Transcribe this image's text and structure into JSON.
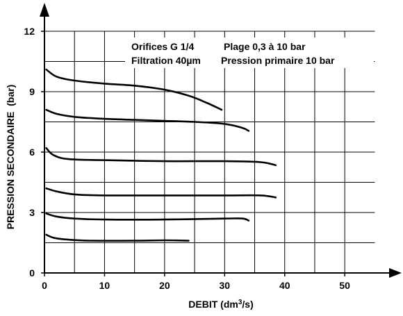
{
  "chart_data": {
    "type": "line",
    "title": "",
    "xlabel": "DEBIT (dm³/s)",
    "xlabel_base": "DEBIT (dm",
    "xlabel_sup": "3",
    "xlabel_tail": "/s)",
    "ylabel": "PRESSION SECONDAIRE  (bar)",
    "xlim": [
      0,
      55
    ],
    "ylim": [
      0,
      12
    ],
    "xticks": [
      0,
      10,
      20,
      30,
      40,
      50
    ],
    "yticks": [
      0,
      3,
      6,
      9,
      12
    ],
    "grid_x": [
      0,
      5,
      10,
      15,
      20,
      25,
      30,
      35,
      40,
      45,
      50
    ],
    "grid_y": [
      0,
      1.5,
      3,
      4.5,
      6,
      7.5,
      9,
      10.5,
      12
    ],
    "grid": true,
    "annotations": [
      "Orifices G 1/4",
      "Plage 0,3 à 10 bar",
      "Filtration 40µm",
      "Pression primaire 10 bar"
    ],
    "series": [
      {
        "x": [
          0.3,
          2,
          5,
          10,
          15,
          20,
          24,
          27,
          29.5
        ],
        "y": [
          10.1,
          9.75,
          9.55,
          9.4,
          9.3,
          9.1,
          8.8,
          8.45,
          8.1
        ]
      },
      {
        "x": [
          0.3,
          2,
          5,
          10,
          15,
          20,
          25,
          30,
          33,
          34
        ],
        "y": [
          8.1,
          7.9,
          7.75,
          7.65,
          7.6,
          7.55,
          7.5,
          7.4,
          7.2,
          7.05
        ]
      },
      {
        "x": [
          0.3,
          1.5,
          4,
          10,
          20,
          30,
          36,
          38.5
        ],
        "y": [
          6.2,
          5.85,
          5.65,
          5.6,
          5.55,
          5.55,
          5.5,
          5.35
        ]
      },
      {
        "x": [
          0.3,
          2,
          5,
          10,
          20,
          30,
          36,
          38.5
        ],
        "y": [
          4.2,
          4.05,
          3.9,
          3.85,
          3.85,
          3.85,
          3.85,
          3.75
        ]
      },
      {
        "x": [
          0.3,
          2,
          5,
          10,
          20,
          30,
          33,
          34
        ],
        "y": [
          2.95,
          2.8,
          2.7,
          2.65,
          2.65,
          2.7,
          2.7,
          2.6
        ]
      },
      {
        "x": [
          0.3,
          1.5,
          4,
          8,
          15,
          20,
          24
        ],
        "y": [
          1.9,
          1.75,
          1.65,
          1.6,
          1.6,
          1.62,
          1.6
        ]
      }
    ]
  }
}
